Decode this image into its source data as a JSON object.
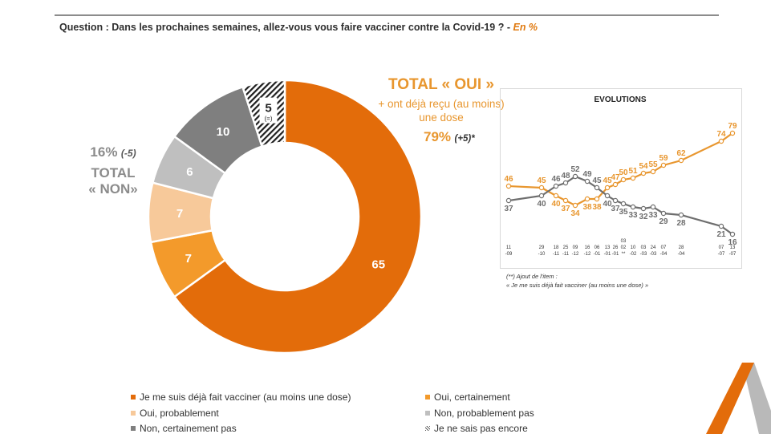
{
  "question": {
    "text": "Question : Dans les prochaines semaines, allez-vous vous faire vacciner contre la Covid-19 ? - ",
    "unit": "En %"
  },
  "colors": {
    "deja": "#e36c0a",
    "certainement": "#f39a2b",
    "probablement": "#f7c99a",
    "non_probablement": "#bfbfbf",
    "non_certainement": "#7f7f7f",
    "accent_orange": "#e8962e",
    "grey_line": "#6e6e6e"
  },
  "total_non": {
    "pct": "16%",
    "delta": "(-5)",
    "total": "TOTAL",
    "label": "« NON»"
  },
  "total_oui": {
    "title": "TOTAL « OUI »",
    "subtitle": "+ ont déjà reçu (au moins) une dose",
    "pct": "79%",
    "delta": "(+5)*"
  },
  "footnote": {
    "line1": "(**) Ajout de l'item :",
    "line2": "« Je me suis déjà fait vacciner (au moins une dose) »"
  },
  "legend": [
    {
      "label": "Je me suis déjà fait vacciner (au moins une dose)",
      "color": "#e36c0a"
    },
    {
      "label": "Oui, certainement",
      "color": "#f39a2b"
    },
    {
      "label": "Oui, probablement",
      "color": "#f7c99a"
    },
    {
      "label": "Non, probablement pas",
      "color": "#bfbfbf"
    },
    {
      "label": "Non, certainement pas",
      "color": "#7f7f7f"
    },
    {
      "label": "Je ne sais pas encore",
      "color": "hatch"
    }
  ],
  "chart_data": [
    {
      "type": "pie",
      "variant": "donut",
      "unit": "%",
      "start": "top, clockwise",
      "slices": [
        {
          "label": "Je me suis déjà fait vacciner (au moins une dose)",
          "value": 65,
          "color": "#e36c0a"
        },
        {
          "label": "Oui, certainement",
          "value": 7,
          "color": "#f39a2b"
        },
        {
          "label": "Oui, probablement",
          "value": 7,
          "color": "#f7c99a"
        },
        {
          "label": "Non, probablement pas",
          "value": 6,
          "color": "#bfbfbf"
        },
        {
          "label": "Non, certainement pas",
          "value": 10,
          "color": "#7f7f7f"
        },
        {
          "label": "Je ne sais pas encore",
          "value": 5,
          "color": "hatch",
          "note": "(=)"
        }
      ]
    },
    {
      "type": "line",
      "title": "EVOLUTIONS",
      "x_labels": [
        [
          "11",
          "-09"
        ],
        [
          "29",
          "-10"
        ],
        [
          "18",
          "-11"
        ],
        [
          "25",
          "-11"
        ],
        [
          "09",
          "-12"
        ],
        [
          "16",
          "-12"
        ],
        [
          "06",
          "-01"
        ],
        [
          "13",
          "-01"
        ],
        [
          "26",
          "-01"
        ],
        [
          "03",
          "02",
          "**"
        ],
        [
          "10",
          "-02"
        ],
        [
          "03",
          "-03"
        ],
        [
          "24",
          "-03"
        ],
        [
          "07",
          "-04"
        ],
        [
          "28",
          "-04"
        ],
        [
          "07",
          "-07"
        ],
        [
          "13",
          "-07"
        ]
      ],
      "grid": false,
      "legend": "none",
      "series": [
        {
          "role": "total_oui",
          "color": "#e8962e",
          "values": [
            46,
            45,
            40,
            37,
            34,
            38,
            38,
            45,
            47,
            50,
            51,
            54,
            55,
            59,
            62,
            74,
            79
          ]
        },
        {
          "role": "total_non",
          "color": "#6e6e6e",
          "values": [
            37,
            40,
            46,
            48,
            52,
            49,
            45,
            40,
            37,
            35,
            33,
            32,
            33,
            29,
            28,
            21,
            16
          ]
        }
      ]
    }
  ]
}
